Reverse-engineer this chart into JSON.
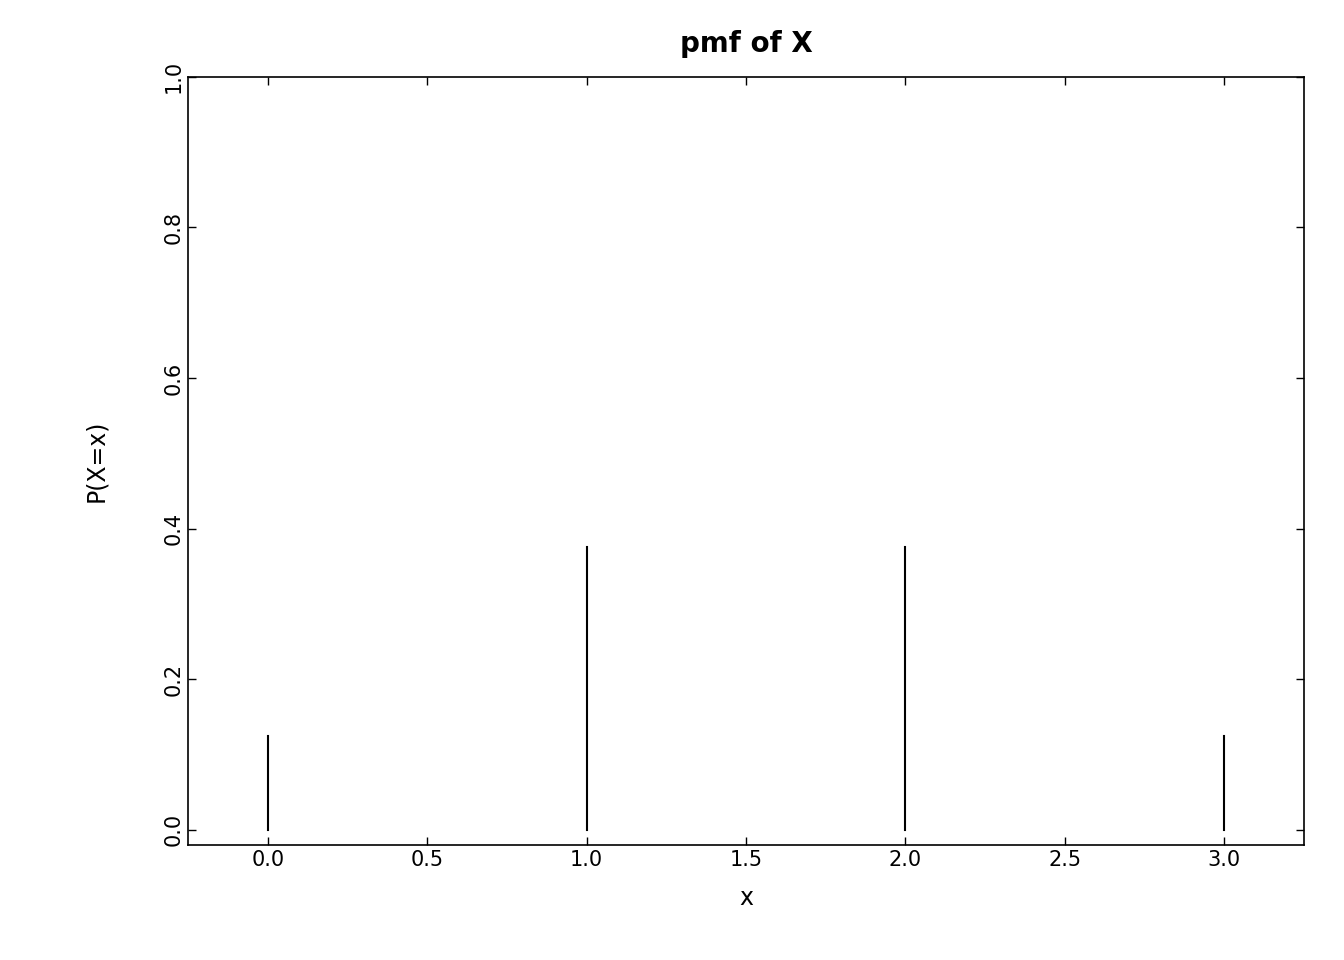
{
  "title": "pmf of X",
  "xlabel": "x",
  "ylabel": "P(X=x)",
  "x_values": [
    0,
    1,
    2,
    3
  ],
  "y_values": [
    0.125,
    0.375,
    0.375,
    0.125
  ],
  "xlim": [
    -0.25,
    3.25
  ],
  "ylim": [
    -0.02,
    1.0
  ],
  "x_ticks": [
    0.0,
    0.5,
    1.0,
    1.5,
    2.0,
    2.5,
    3.0
  ],
  "y_ticks": [
    0.0,
    0.2,
    0.4,
    0.6,
    0.8,
    1.0
  ],
  "background_color": "#ffffff",
  "line_color": "#000000",
  "title_fontsize": 20,
  "label_fontsize": 17,
  "tick_fontsize": 15
}
